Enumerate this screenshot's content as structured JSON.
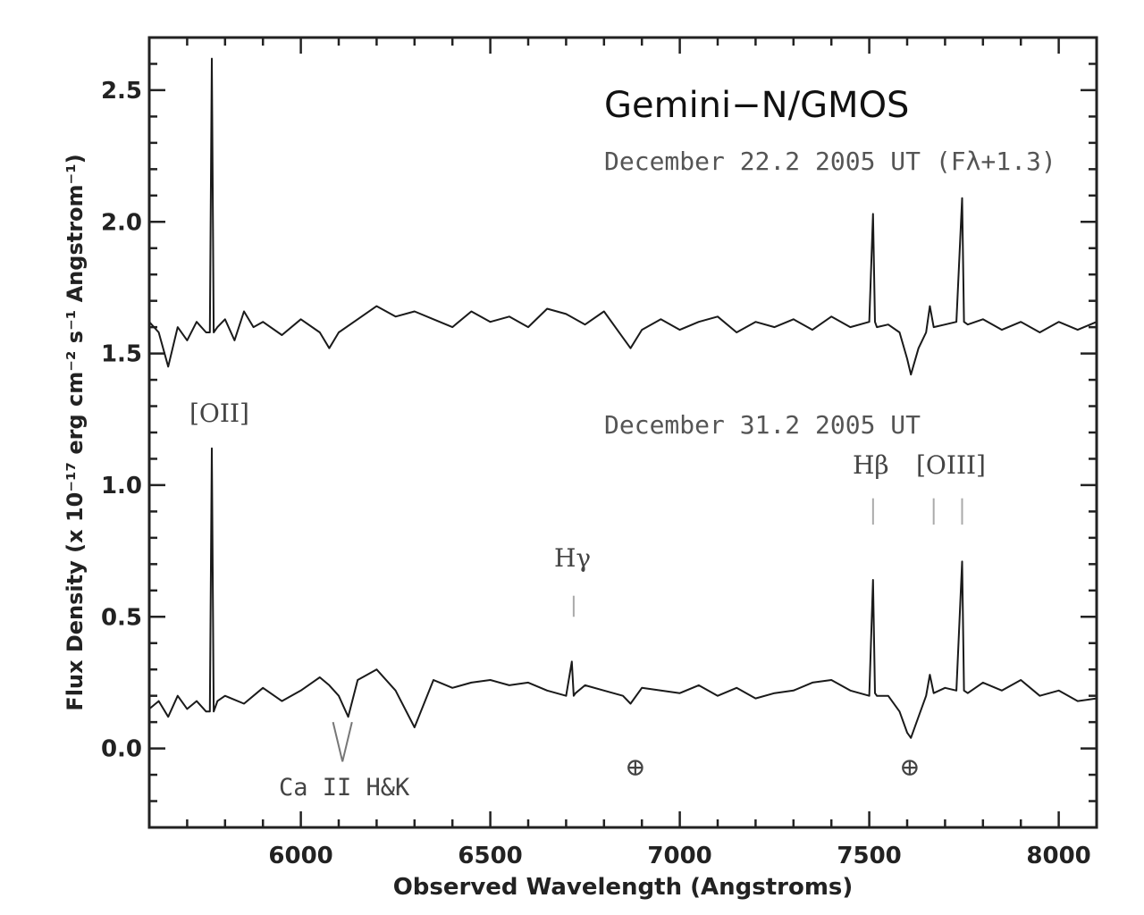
{
  "chart_data": {
    "type": "line",
    "title": "Gemini−N/GMOS",
    "xlabel": "Observed Wavelength (Angstroms)",
    "ylabel": "Flux Density (x 10⁻¹⁷ erg cm⁻² s⁻¹ Angstrom⁻¹)",
    "xlim": [
      5600,
      8100
    ],
    "ylim": [
      -0.3,
      2.7
    ],
    "x_ticks": [
      "6000",
      "6500",
      "7000",
      "7500",
      "8000"
    ],
    "y_ticks": [
      "0.0",
      "0.5",
      "1.0",
      "1.5",
      "2.0",
      "2.5"
    ],
    "grid": false,
    "series": [
      {
        "name": "December 22.2 2005 UT (Fλ+1.3)",
        "x": [
          5600,
          5625,
          5650,
          5675,
          5700,
          5725,
          5750,
          5760,
          5765,
          5770,
          5780,
          5800,
          5825,
          5850,
          5875,
          5900,
          5950,
          6000,
          6050,
          6075,
          6100,
          6150,
          6200,
          6250,
          6300,
          6350,
          6400,
          6450,
          6500,
          6550,
          6600,
          6650,
          6700,
          6750,
          6800,
          6850,
          6870,
          6900,
          6950,
          7000,
          7050,
          7100,
          7150,
          7200,
          7250,
          7300,
          7350,
          7400,
          7450,
          7500,
          7510,
          7515,
          7520,
          7550,
          7580,
          7600,
          7610,
          7630,
          7650,
          7660,
          7670,
          7700,
          7730,
          7745,
          7750,
          7760,
          7800,
          7850,
          7900,
          7950,
          8000,
          8050,
          8100
        ],
        "y": [
          1.62,
          1.58,
          1.45,
          1.6,
          1.55,
          1.62,
          1.58,
          1.58,
          2.62,
          1.58,
          1.6,
          1.63,
          1.55,
          1.66,
          1.6,
          1.62,
          1.57,
          1.63,
          1.58,
          1.52,
          1.58,
          1.63,
          1.68,
          1.64,
          1.66,
          1.63,
          1.6,
          1.66,
          1.62,
          1.64,
          1.6,
          1.67,
          1.65,
          1.61,
          1.66,
          1.56,
          1.52,
          1.59,
          1.63,
          1.59,
          1.62,
          1.64,
          1.58,
          1.62,
          1.6,
          1.63,
          1.59,
          1.64,
          1.6,
          1.62,
          2.03,
          1.62,
          1.6,
          1.61,
          1.58,
          1.48,
          1.42,
          1.52,
          1.58,
          1.68,
          1.6,
          1.61,
          1.62,
          2.09,
          1.62,
          1.61,
          1.63,
          1.59,
          1.62,
          1.58,
          1.62,
          1.59,
          1.62
        ]
      },
      {
        "name": "December 31.2 2005 UT",
        "x": [
          5600,
          5625,
          5650,
          5675,
          5700,
          5725,
          5750,
          5760,
          5765,
          5770,
          5780,
          5800,
          5850,
          5900,
          5950,
          6000,
          6050,
          6075,
          6100,
          6125,
          6150,
          6200,
          6250,
          6300,
          6350,
          6400,
          6450,
          6500,
          6550,
          6600,
          6650,
          6700,
          6715,
          6720,
          6725,
          6750,
          6800,
          6850,
          6870,
          6900,
          6950,
          7000,
          7050,
          7100,
          7150,
          7200,
          7250,
          7300,
          7350,
          7400,
          7450,
          7500,
          7510,
          7515,
          7520,
          7550,
          7580,
          7600,
          7610,
          7630,
          7650,
          7660,
          7670,
          7700,
          7730,
          7745,
          7750,
          7760,
          7800,
          7850,
          7900,
          7950,
          8000,
          8050,
          8100
        ],
        "y": [
          0.15,
          0.18,
          0.12,
          0.2,
          0.15,
          0.18,
          0.14,
          0.14,
          1.14,
          0.14,
          0.18,
          0.2,
          0.17,
          0.23,
          0.18,
          0.22,
          0.27,
          0.24,
          0.2,
          0.12,
          0.26,
          0.3,
          0.22,
          0.08,
          0.26,
          0.23,
          0.25,
          0.26,
          0.24,
          0.25,
          0.22,
          0.2,
          0.33,
          0.2,
          0.21,
          0.24,
          0.22,
          0.2,
          0.17,
          0.23,
          0.22,
          0.21,
          0.24,
          0.2,
          0.23,
          0.19,
          0.21,
          0.22,
          0.25,
          0.26,
          0.22,
          0.2,
          0.64,
          0.21,
          0.2,
          0.2,
          0.14,
          0.06,
          0.04,
          0.12,
          0.2,
          0.28,
          0.21,
          0.23,
          0.22,
          0.71,
          0.22,
          0.21,
          0.25,
          0.22,
          0.26,
          0.2,
          0.22,
          0.18,
          0.19
        ]
      }
    ],
    "annotations": {
      "subtitle_1": "December 22.2 2005 UT (Fλ+1.3)",
      "subtitle_2": "December 31.2 2005 UT",
      "oii": "[OII]",
      "hbeta": "Hβ",
      "oiii": "[OIII]",
      "hgamma": "Hγ",
      "ca": "Ca II H&K",
      "earth_symbol": "⊕",
      "earth_x": [
        6880,
        7605
      ]
    }
  }
}
